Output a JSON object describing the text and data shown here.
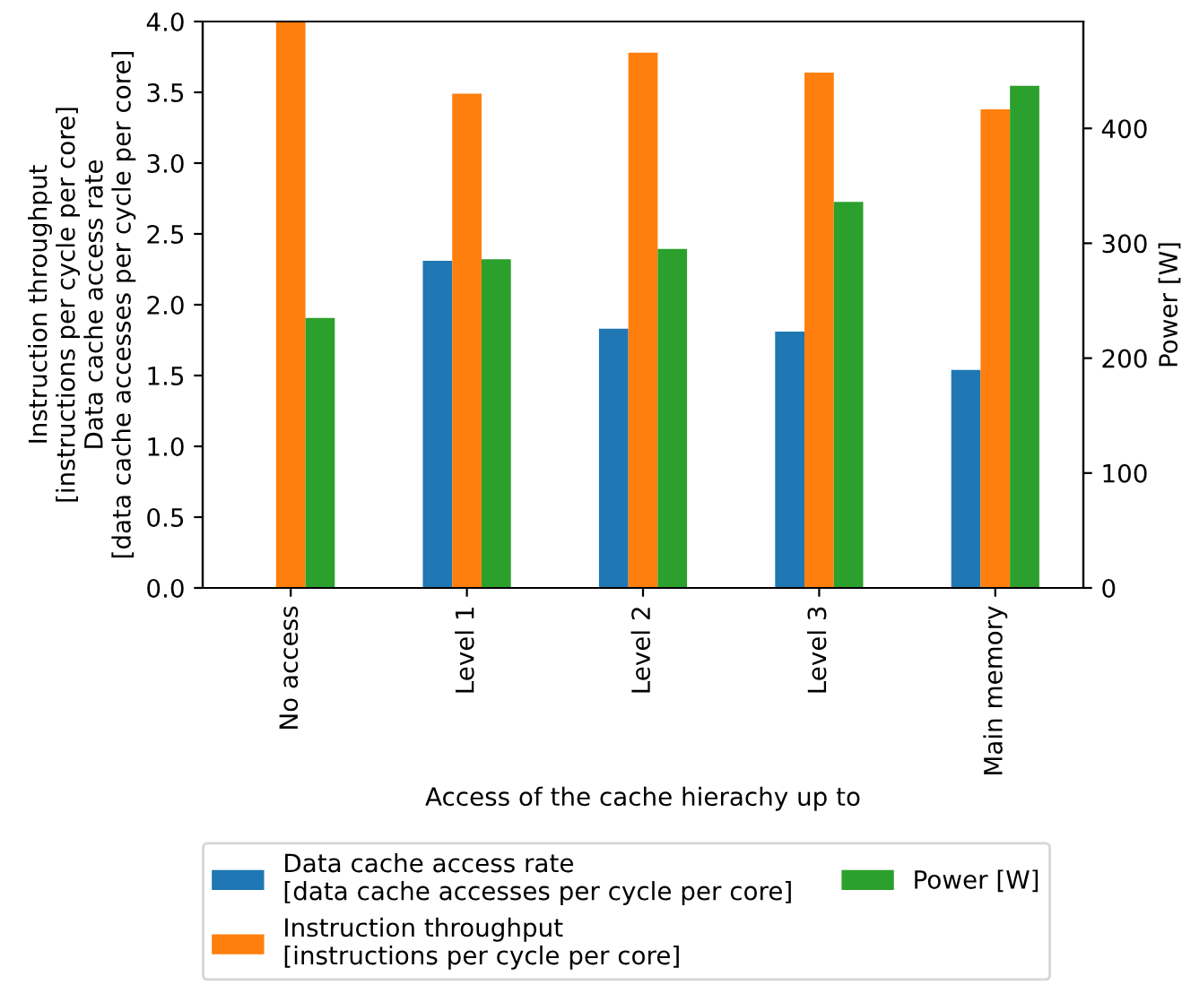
{
  "chart_data": {
    "type": "bar",
    "categories": [
      "No access",
      "Level 1",
      "Level 2",
      "Level 3",
      "Main memory"
    ],
    "xlabel": "Access of the cache hierachy up to",
    "ylabel": "Instruction throughput\n[instructions per cycle per core]\nData cache access rate\n[data cache accesses per cycle per core]",
    "y2label": "Power [W]",
    "series": [
      {
        "name": "Data cache access rate\n[data cache accesses per cycle per core]",
        "color": "#1f77b4",
        "values": [
          0,
          2.31,
          1.83,
          1.81,
          1.54
        ]
      },
      {
        "name": "Instruction throughput\n[instructions per cycle per core]",
        "color": "#ff7f0e",
        "values": [
          4.0,
          3.49,
          3.78,
          3.64,
          3.38
        ]
      },
      {
        "name": "Power [W]",
        "color": "#2ca02c",
        "axis": "y2",
        "values": [
          235,
          286,
          295,
          336,
          437
        ]
      }
    ],
    "ylim": [
      0,
      4.0
    ],
    "yticks": [
      {
        "value": 0,
        "label": "0.0"
      },
      0.5,
      {
        "value": 1,
        "label": "1.0"
      },
      1.5,
      {
        "value": 2,
        "label": "2.0"
      },
      2.5,
      {
        "value": 3,
        "label": "3.0"
      },
      3.5,
      {
        "value": 4,
        "label": "4.0"
      }
    ],
    "y2lim": [
      0,
      493
    ],
    "y2ticks": [
      0,
      100,
      200,
      300,
      400
    ],
    "legend": "bottom",
    "grid": false
  }
}
